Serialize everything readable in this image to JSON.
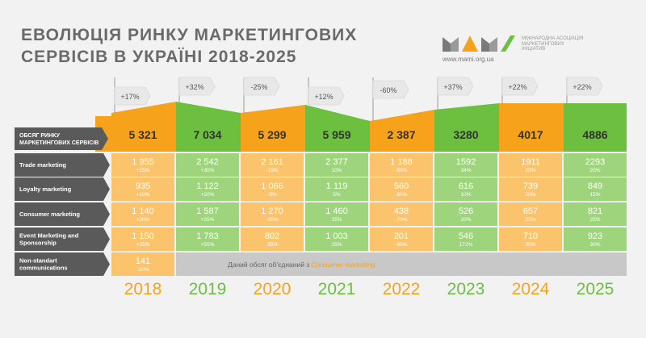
{
  "header": {
    "title": "Еволюція ринку маркетингових сервісів в Україні 2018-2025",
    "logo_text": "Міжнародна асоціація маркетингових ініціатив",
    "url": "www.mami.org.ua"
  },
  "colors": {
    "orange": "#f7a21b",
    "green": "#6cbf3f",
    "light_orange": "#fbc36c",
    "light_green": "#9ed47b",
    "label_dark": "#5a5a5a",
    "note_gray": "#c8c8c8",
    "accent_orange": "#f7a21b"
  },
  "chart_data": {
    "type": "table",
    "years": [
      "2018",
      "2019",
      "2020",
      "2021",
      "2022",
      "2023",
      "2024",
      "2025"
    ],
    "growth": [
      "+17%",
      "+32%",
      "-25%",
      "+12%",
      "-60%",
      "+37%",
      "+22%",
      "+22%"
    ],
    "rows": [
      {
        "label": "ОБСЯГ РИНКУ МАРКЕТИНГОВИХ СЕРВІСІВ",
        "values": [
          "5 321",
          "7 034",
          "5 299",
          "5 959",
          "2 387",
          "3280",
          "4017",
          "4886"
        ],
        "changes": [
          "",
          "",
          "",
          "",
          "",
          "",
          "",
          ""
        ]
      },
      {
        "label": "Trade marketing",
        "values": [
          "1 955",
          "2 542",
          "2 161",
          "2 377",
          "1 188",
          "1592",
          "1911",
          "2293"
        ],
        "changes": [
          "+15%",
          "+30%",
          "-15%",
          "10%",
          "-50%",
          "34%",
          "20%",
          "20%"
        ]
      },
      {
        "label": "Loyalty marketing",
        "values": [
          "935",
          "1 122",
          "1 066",
          "1 119",
          "560",
          "616",
          "739",
          "849"
        ],
        "changes": [
          "+10%",
          "+20%",
          "-5%",
          "5%",
          "-50%",
          "10%",
          "20%",
          "15%"
        ]
      },
      {
        "label": "Consumer marketing",
        "values": [
          "1 140",
          "1 587",
          "1 270",
          "1 460",
          "438",
          "526",
          "657",
          "821"
        ],
        "changes": [
          "+20%",
          "+25%",
          "-20%",
          "15%",
          "-70%",
          "20%",
          "25%",
          "25%"
        ]
      },
      {
        "label": "Event Marketing and Sponsorship",
        "values": [
          "1 150",
          "1 783",
          "802",
          "1 003",
          "201",
          "546",
          "710",
          "923"
        ],
        "changes": [
          "+25%",
          "+55%",
          "-55%",
          "25%",
          "-80%",
          "172%",
          "30%",
          "30%"
        ]
      },
      {
        "label": "Non-standart communications",
        "values": [
          "141",
          "",
          "",
          "",
          "",
          "",
          "",
          ""
        ],
        "changes": [
          "-10%",
          "",
          "",
          "",
          "",
          "",
          "",
          ""
        ]
      }
    ],
    "merged_note": {
      "prefix": "Даний обсяг об'єднаний з",
      "highlight": "Consumer marketing"
    }
  }
}
